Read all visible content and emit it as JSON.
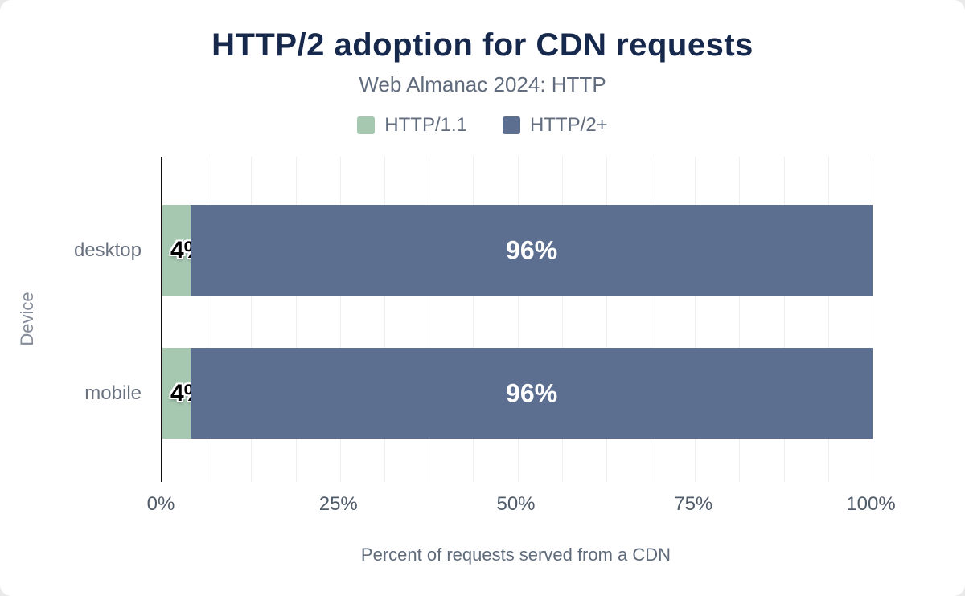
{
  "title": "HTTP/2 adoption for CDN requests",
  "subtitle": "Web Almanac 2024: HTTP",
  "legend": [
    {
      "label": "HTTP/1.1",
      "color": "#a6c7b0"
    },
    {
      "label": "HTTP/2+",
      "color": "#5c6f90"
    }
  ],
  "chart_data": {
    "type": "bar",
    "orientation": "horizontal",
    "stacked": true,
    "title": "HTTP/2 adoption for CDN requests",
    "subtitle": "Web Almanac 2024: HTTP",
    "categories": [
      "desktop",
      "mobile"
    ],
    "series": [
      {
        "name": "HTTP/1.1",
        "color": "#a6c7b0",
        "values": [
          4,
          4
        ]
      },
      {
        "name": "HTTP/2+",
        "color": "#5c6f90",
        "values": [
          96,
          96
        ]
      }
    ],
    "bar_labels": [
      [
        "4%",
        "96%"
      ],
      [
        "4%",
        "96%"
      ]
    ],
    "xlabel": "Percent of requests served from a CDN",
    "ylabel": "Device",
    "xlim": [
      0,
      100
    ],
    "xticks": [
      "0%",
      "25%",
      "50%",
      "75%",
      "100%"
    ],
    "xtick_values": [
      0,
      25,
      50,
      75,
      100
    ],
    "grid": "vertical-minor",
    "legend_position": "top"
  }
}
